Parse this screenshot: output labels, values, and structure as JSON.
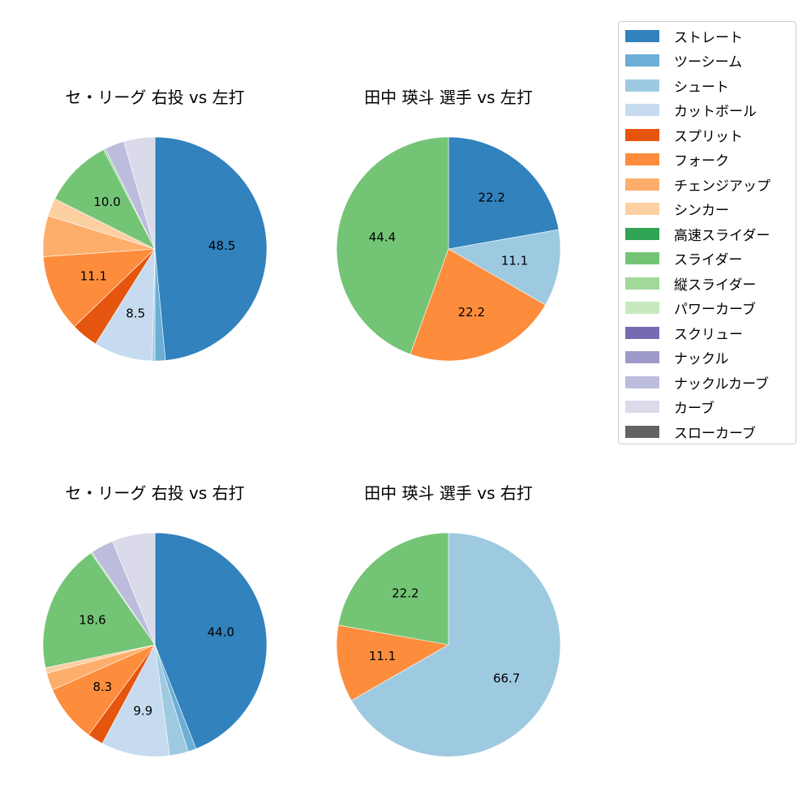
{
  "legend": {
    "items": [
      {
        "label": "ストレート",
        "color": "#3182bd"
      },
      {
        "label": "ツーシーム",
        "color": "#6baed6"
      },
      {
        "label": "シュート",
        "color": "#9ecae1"
      },
      {
        "label": "カットボール",
        "color": "#c6dbef"
      },
      {
        "label": "スプリット",
        "color": "#e6550d"
      },
      {
        "label": "フォーク",
        "color": "#fd8d3c"
      },
      {
        "label": "チェンジアップ",
        "color": "#fdae6b"
      },
      {
        "label": "シンカー",
        "color": "#fdd0a2"
      },
      {
        "label": "高速スライダー",
        "color": "#31a354"
      },
      {
        "label": "スライダー",
        "color": "#74c476"
      },
      {
        "label": "縦スライダー",
        "color": "#a1d99b"
      },
      {
        "label": "パワーカーブ",
        "color": "#c7e9c0"
      },
      {
        "label": "スクリュー",
        "color": "#756bb1"
      },
      {
        "label": "ナックル",
        "color": "#9e9ac8"
      },
      {
        "label": "ナックルカーブ",
        "color": "#bcbddc"
      },
      {
        "label": "カーブ",
        "color": "#dadaeb"
      },
      {
        "label": "スローカーブ",
        "color": "#636363"
      }
    ]
  },
  "chart_data": [
    {
      "type": "pie",
      "title": "セ・リーグ 右投 vs 左打",
      "center": [
        191,
        307
      ],
      "radius": 138,
      "slices": [
        {
          "label": "ストレート",
          "value": 48.5,
          "show_label": true
        },
        {
          "label": "ツーシーム",
          "value": 1.5
        },
        {
          "label": "シュート",
          "value": 0.4
        },
        {
          "label": "カットボール",
          "value": 8.5,
          "show_label": true
        },
        {
          "label": "スプリット",
          "value": 3.9
        },
        {
          "label": "フォーク",
          "value": 11.1,
          "show_label": true
        },
        {
          "label": "チェンジアップ",
          "value": 5.9
        },
        {
          "label": "シンカー",
          "value": 2.6
        },
        {
          "label": "スライダー",
          "value": 10.0,
          "show_label": true
        },
        {
          "label": "縦スライダー",
          "value": 0.3
        },
        {
          "label": "ナックルカーブ",
          "value": 2.8
        },
        {
          "label": "カーブ",
          "value": 4.5
        }
      ]
    },
    {
      "type": "pie",
      "title": "田中 瑛斗 選手 vs 左打",
      "center": [
        553,
        307
      ],
      "radius": 138,
      "slices": [
        {
          "label": "ストレート",
          "value": 22.2,
          "show_label": true
        },
        {
          "label": "シュート",
          "value": 11.1,
          "show_label": true
        },
        {
          "label": "フォーク",
          "value": 22.2,
          "show_label": true
        },
        {
          "label": "スライダー",
          "value": 44.4,
          "show_label": true
        }
      ]
    },
    {
      "type": "pie",
      "title": "セ・リーグ 右投 vs 右打",
      "center": [
        191,
        795
      ],
      "radius": 138,
      "slices": [
        {
          "label": "ストレート",
          "value": 44.0,
          "show_label": true
        },
        {
          "label": "ツーシーム",
          "value": 1.2
        },
        {
          "label": "シュート",
          "value": 2.7
        },
        {
          "label": "カットボール",
          "value": 9.9,
          "show_label": true
        },
        {
          "label": "スプリット",
          "value": 2.3
        },
        {
          "label": "フォーク",
          "value": 8.3,
          "show_label": true
        },
        {
          "label": "チェンジアップ",
          "value": 2.5
        },
        {
          "label": "シンカー",
          "value": 0.8
        },
        {
          "label": "スライダー",
          "value": 18.6,
          "show_label": true
        },
        {
          "label": "縦スライダー",
          "value": 0.2
        },
        {
          "label": "ナックルカーブ",
          "value": 3.3
        },
        {
          "label": "カーブ",
          "value": 6.2
        }
      ]
    },
    {
      "type": "pie",
      "title": "田中 瑛斗 選手 vs 右打",
      "center": [
        553,
        795
      ],
      "radius": 138,
      "slices": [
        {
          "label": "シュート",
          "value": 66.7,
          "show_label": true
        },
        {
          "label": "フォーク",
          "value": 11.1,
          "show_label": true
        },
        {
          "label": "スライダー",
          "value": 22.2,
          "show_label": true
        }
      ]
    }
  ]
}
